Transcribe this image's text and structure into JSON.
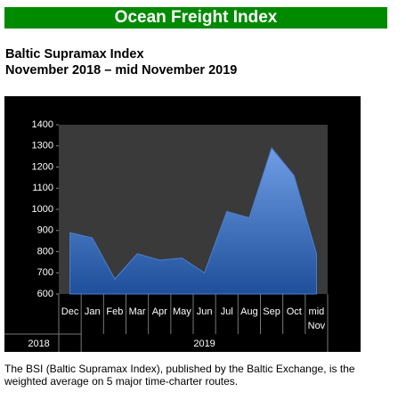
{
  "header": "Ocean Freight Index",
  "caption": "The BSI (Baltic Supramax Index), published by the Baltic Exchange, is the weighted average on 5 major time-charter routes.",
  "chart_data": {
    "type": "area",
    "title": "Baltic Supramax Index",
    "subtitle": "November 2018 – mid November 2019",
    "categories": [
      "Dec",
      "Jan",
      "Feb",
      "Mar",
      "Apr",
      "May",
      "Jun",
      "Jul",
      "Aug",
      "Sep",
      "Oct",
      "mid Nov"
    ],
    "x_groups": [
      {
        "label": "2018",
        "count": 1
      },
      {
        "label": "2019",
        "count": 11
      }
    ],
    "values": [
      890,
      865,
      670,
      790,
      760,
      770,
      700,
      990,
      960,
      1290,
      1160,
      790
    ],
    "color": "#4a7fd0",
    "ylim": [
      600,
      1400
    ],
    "yticks": [
      600,
      700,
      800,
      900,
      1000,
      1100,
      1200,
      1300,
      1400
    ]
  }
}
